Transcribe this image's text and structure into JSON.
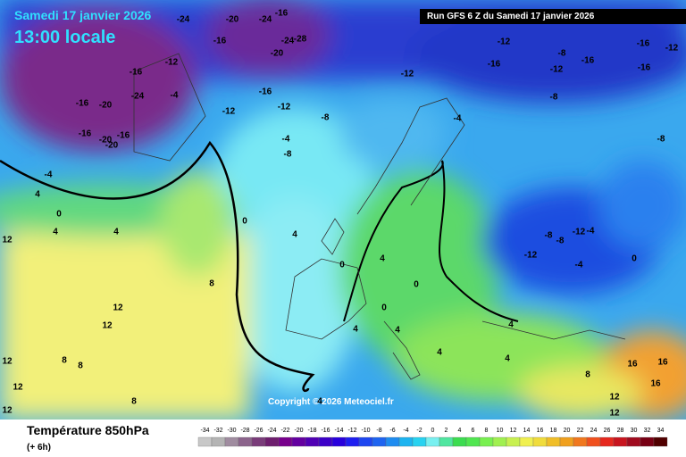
{
  "header": {
    "date": "Samedi 17 janvier 2026",
    "time": "13:00 locale",
    "run": "Run GFS 6 Z du Samedi 17 janvier 2026"
  },
  "footer": {
    "title": "Température 850hPa",
    "subtitle": "(+ 6h)",
    "copyright": "Copyright © 2026 Meteociel.fr"
  },
  "legend": {
    "values": [
      -34,
      -32,
      -30,
      -28,
      -26,
      -24,
      -22,
      -20,
      -18,
      -16,
      -14,
      -12,
      -10,
      -8,
      -6,
      -4,
      -2,
      0,
      2,
      4,
      6,
      8,
      10,
      12,
      14,
      16,
      18,
      20,
      22,
      24,
      26,
      28,
      30,
      32,
      34
    ],
    "colors": [
      "#c8c8c8",
      "#b4b4b4",
      "#a08ca0",
      "#8c648c",
      "#7a3c7a",
      "#6e1e6e",
      "#78008c",
      "#6400a0",
      "#5000b4",
      "#3c00c8",
      "#2800dc",
      "#1e1ef0",
      "#1e46f0",
      "#1e64f0",
      "#1e8cf0",
      "#1eb4f0",
      "#28d2f0",
      "#78f0f0",
      "#50e6a0",
      "#3cdc50",
      "#50e650",
      "#78f050",
      "#a0f050",
      "#c8f050",
      "#f0f050",
      "#f0dc3c",
      "#f0be28",
      "#f0a01e",
      "#f0781e",
      "#f0501e",
      "#e6281e",
      "#c8141e",
      "#a00a1e",
      "#780014",
      "#500000"
    ]
  },
  "contour_labels": [
    -24,
    -20,
    -24,
    -16,
    -16,
    -24,
    -28,
    -20,
    -12,
    -16,
    -24,
    -20,
    -16,
    -16,
    -20,
    -16,
    -20,
    -4,
    -12,
    -16,
    -12,
    -12,
    -8,
    -4,
    -8,
    -12,
    -8,
    -16,
    -12,
    -16,
    -16,
    -12,
    -16,
    -8,
    -8,
    -4,
    -4,
    4,
    0,
    4,
    4,
    0,
    12,
    8,
    12,
    12,
    8,
    8,
    12,
    12,
    12,
    8,
    4,
    0,
    4,
    0,
    0,
    4,
    4,
    4,
    -8,
    -12,
    -4,
    -8,
    -12,
    -4,
    0,
    4,
    4,
    8,
    16,
    16,
    16,
    12,
    12,
    4
  ]
}
